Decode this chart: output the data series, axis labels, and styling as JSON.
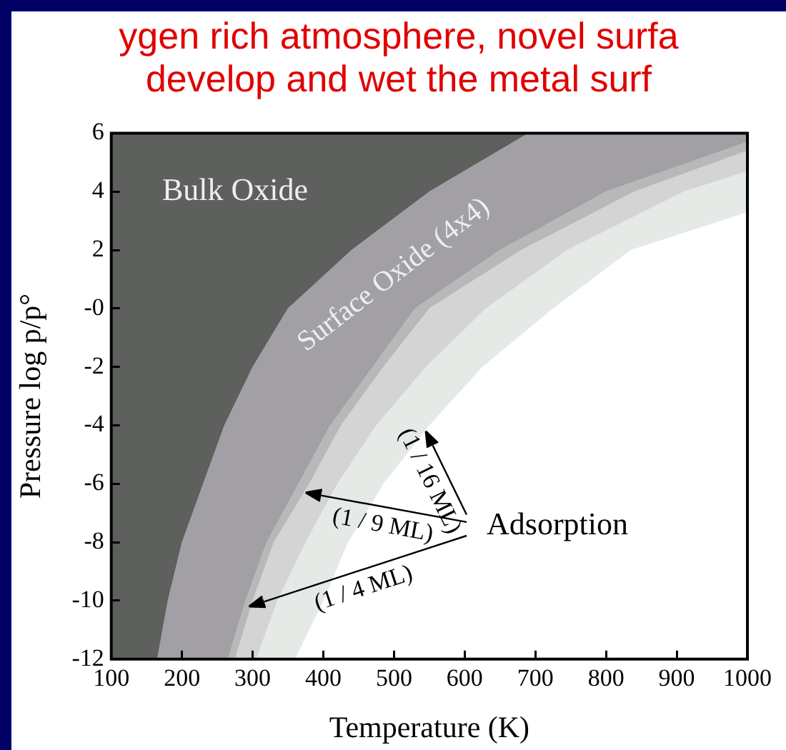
{
  "chart_data": {
    "type": "area",
    "title": "ygen rich atmosphere, novel surfa",
    "subtitle": "develop and wet the metal surf",
    "xlabel": "Temperature (K)",
    "ylabel": "Pressure log p/p°",
    "annotations": [
      "Adsorption",
      {
        "text": "(1 / 4 ML)",
        "x": 295,
        "y": -10.2
      },
      {
        "text": "(1 / 9 ML)",
        "x": 375,
        "y": -6.3
      },
      {
        "text": "(1 / 16 ML)",
        "x": 545,
        "y": -4.2
      }
    ],
    "xlim": [
      100,
      1000
    ],
    "ylim": [
      -12,
      6
    ],
    "xticks": [
      100,
      200,
      300,
      400,
      500,
      600,
      700,
      800,
      900,
      1000
    ],
    "yticks": [
      -12,
      -10,
      -8,
      -6,
      -4,
      -2,
      {
        "value": 0,
        "label": "-0"
      },
      2,
      4,
      6
    ],
    "legend": false,
    "series": [
      {
        "name": "Bulk Oxide",
        "color": "#5e605e",
        "x": [
          100,
          165,
          180,
          200,
          230,
          260,
          300,
          350,
          440,
          550,
          690,
          100
        ],
        "values": [
          -12,
          -12,
          -10,
          -8,
          -6,
          -4,
          -2,
          0,
          2,
          4,
          6,
          6
        ]
      },
      {
        "name": "Surface Oxide (4x4)",
        "color": "#a3a0a5",
        "x": [
          165,
          265,
          290,
          320,
          365,
          410,
          470,
          530,
          650,
          800,
          1000,
          1000,
          690,
          550,
          440,
          350,
          300,
          260,
          230,
          200,
          180
        ],
        "values": [
          -12,
          -12,
          -10,
          -8,
          -6,
          -4,
          -2,
          0,
          2,
          4,
          5.7,
          6,
          6,
          4,
          2,
          0,
          -2,
          -4,
          -6,
          -8,
          -10
        ]
      },
      {
        "color": "#b8b8b8",
        "x": [
          265,
          275,
          300,
          330,
          380,
          425,
          485,
          550,
          680,
          840,
          1000,
          1000,
          800,
          650,
          530,
          470,
          410,
          365,
          320,
          290
        ],
        "values": [
          -12,
          -12,
          -10,
          -8,
          -6,
          -4,
          -2,
          0,
          2,
          4,
          5.4,
          5.7,
          4,
          2,
          0,
          -2,
          -4,
          -6,
          -8,
          -10
        ]
      },
      {
        "color": "#d3d4d3",
        "x": [
          275,
          305,
          335,
          375,
          420,
          475,
          545,
          630,
          745,
          910,
          1000,
          1000,
          840,
          680,
          550,
          485,
          425,
          380,
          330,
          300
        ],
        "values": [
          -12,
          -12,
          -10,
          -8,
          -6,
          -4,
          -2,
          0,
          2,
          4,
          4.7,
          5.4,
          4,
          2,
          0,
          -2,
          -4,
          -6,
          -8,
          -10
        ]
      },
      {
        "color": "#e6eae6",
        "x": [
          305,
          360,
          400,
          435,
          485,
          550,
          625,
          725,
          835,
          1000,
          1000,
          910,
          745,
          630,
          545,
          475,
          420,
          375,
          335
        ],
        "values": [
          -12,
          -12,
          -10,
          -8,
          -6,
          -4,
          -2,
          0,
          2,
          3.3,
          4.7,
          4,
          2,
          0,
          -2,
          -4,
          -6,
          -8,
          -10
        ]
      }
    ]
  }
}
